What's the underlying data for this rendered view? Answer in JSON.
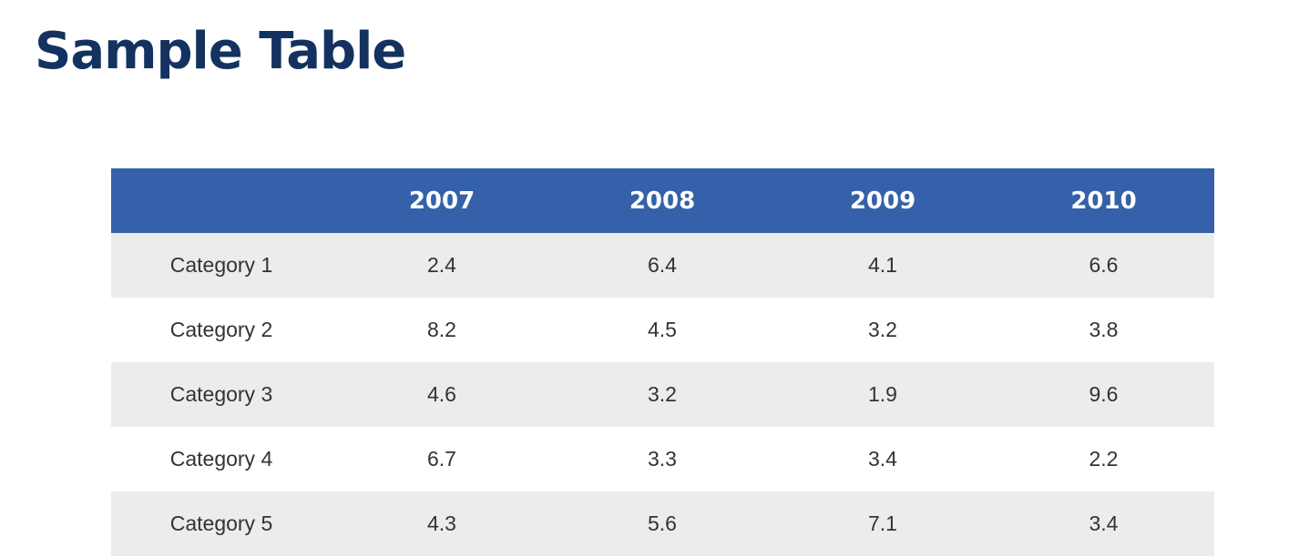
{
  "page": {
    "title": "Sample Table"
  },
  "colors": {
    "title": "#13325f",
    "header_bg": "#3461a9",
    "header_text": "#ffffff",
    "row_alt_bg": "#ececec",
    "cell_text": "#333333"
  },
  "table": {
    "headers": [
      "",
      "2007",
      "2008",
      "2009",
      "2010"
    ],
    "rows": [
      [
        "Category 1",
        "2.4",
        "6.4",
        "4.1",
        "6.6"
      ],
      [
        "Category 2",
        "8.2",
        "4.5",
        "3.2",
        "3.8"
      ],
      [
        "Category 3",
        "4.6",
        "3.2",
        "1.9",
        "9.6"
      ],
      [
        "Category 4",
        "6.7",
        "3.3",
        "3.4",
        "2.2"
      ],
      [
        "Category 5",
        "4.3",
        "5.6",
        "7.1",
        "3.4"
      ]
    ]
  }
}
